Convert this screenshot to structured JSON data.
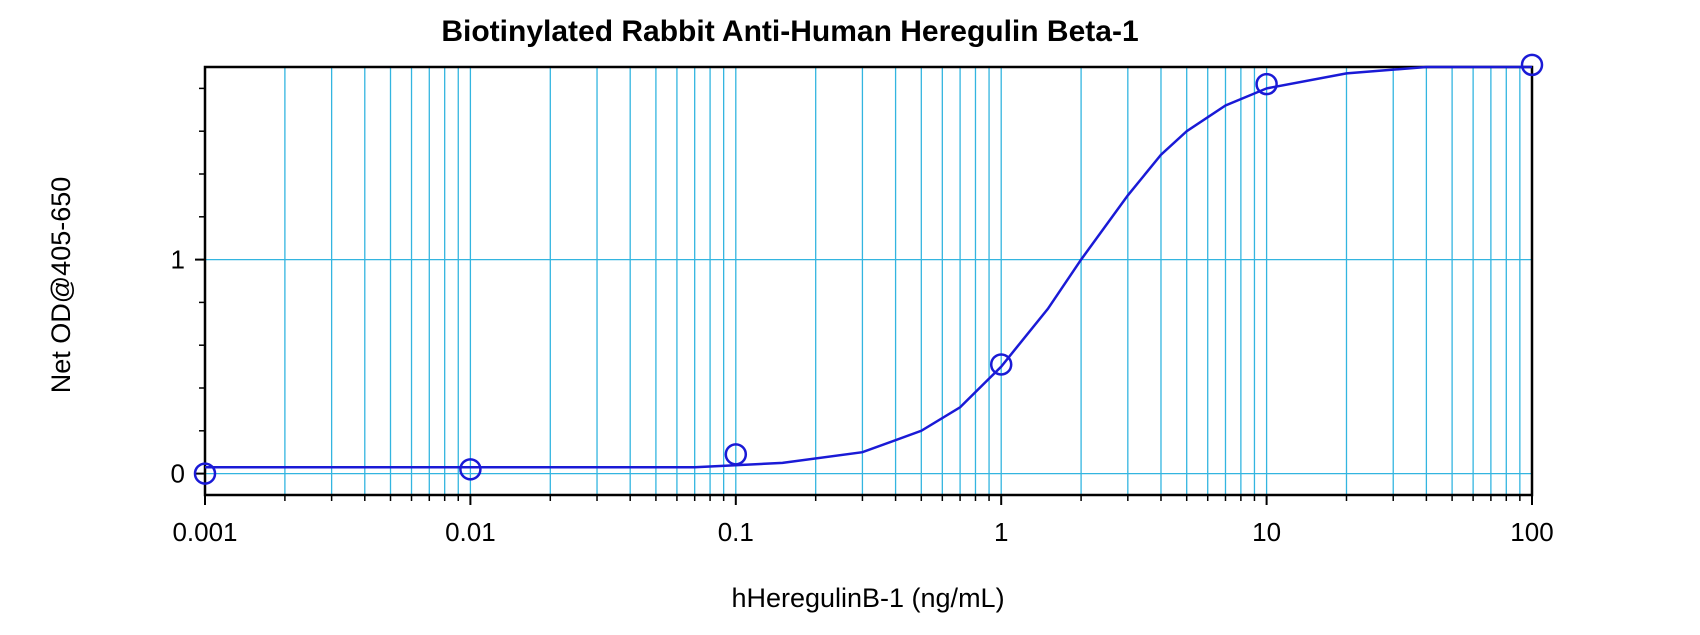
{
  "chart_data": {
    "type": "scatter",
    "title": "Biotinylated Rabbit Anti-Human Heregulin Beta-1",
    "xlabel": "hHeregulinB-1 (ng/mL)",
    "ylabel": "Net OD@405-650",
    "x_scale": "log",
    "xlim": [
      0.001,
      100
    ],
    "ylim": [
      -0.1,
      1.9
    ],
    "x_ticks": [
      0.001,
      0.01,
      0.1,
      1,
      10,
      100
    ],
    "x_tick_labels": [
      "0.001",
      "0.01",
      "0.1",
      "1",
      "10",
      "100"
    ],
    "y_ticks": [
      0,
      1
    ],
    "y_tick_labels": [
      "0",
      "1"
    ],
    "grid": true,
    "series": [
      {
        "marker": "open-circle",
        "points": [
          {
            "x": 0.001,
            "y": 0.0
          },
          {
            "x": 0.01,
            "y": 0.02
          },
          {
            "x": 0.1,
            "y": 0.09
          },
          {
            "x": 1,
            "y": 0.51
          },
          {
            "x": 10,
            "y": 1.82
          },
          {
            "x": 100,
            "y": 1.91
          }
        ]
      }
    ],
    "fit_curve": [
      {
        "x": 0.001,
        "y": 0.03
      },
      {
        "x": 0.07,
        "y": 0.03
      },
      {
        "x": 0.15,
        "y": 0.05
      },
      {
        "x": 0.3,
        "y": 0.1
      },
      {
        "x": 0.5,
        "y": 0.2
      },
      {
        "x": 0.7,
        "y": 0.31
      },
      {
        "x": 1,
        "y": 0.5
      },
      {
        "x": 1.5,
        "y": 0.77
      },
      {
        "x": 2,
        "y": 1.0
      },
      {
        "x": 3,
        "y": 1.3
      },
      {
        "x": 4,
        "y": 1.49
      },
      {
        "x": 5,
        "y": 1.6
      },
      {
        "x": 7,
        "y": 1.72
      },
      {
        "x": 10,
        "y": 1.8
      },
      {
        "x": 20,
        "y": 1.87
      },
      {
        "x": 40,
        "y": 1.9
      },
      {
        "x": 100,
        "y": 1.9
      }
    ],
    "colors": {
      "grid": "#33B5E0",
      "series": "#1A1AD6",
      "frame": "#000000",
      "background": "#FFFFFF"
    }
  }
}
